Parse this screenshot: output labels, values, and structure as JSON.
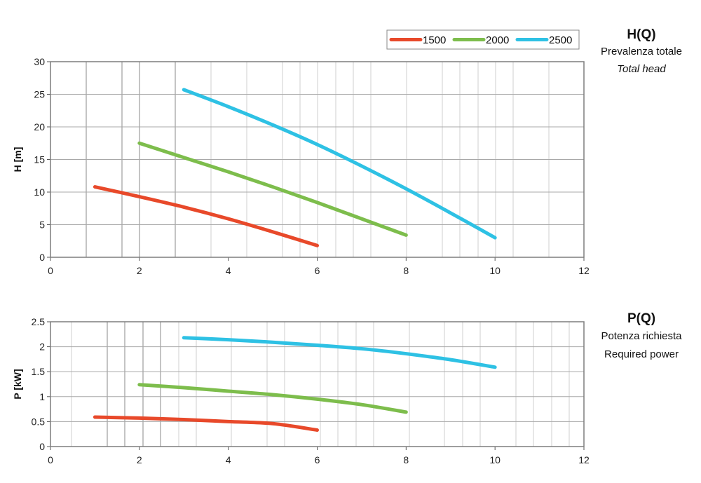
{
  "chart_data": [
    {
      "type": "line",
      "ylabel": "H [m]",
      "xlim": [
        0,
        12
      ],
      "ylim": [
        0,
        30
      ],
      "xticks": [
        "0",
        "2",
        "4",
        "6",
        "8",
        "10",
        "12"
      ],
      "yticks": [
        "0",
        "5",
        "10",
        "15",
        "20",
        "25",
        "30"
      ],
      "grid": true,
      "legend": "top-right",
      "side_title": "H(Q)",
      "side_subtitle": "Prevalenza totale",
      "side_subtitle_en": "Total head",
      "series": [
        {
          "name": "1500",
          "color": "#e8492a",
          "x": [
            1,
            2,
            3,
            4,
            5,
            6
          ],
          "y": [
            10.8,
            9.3,
            7.7,
            5.9,
            3.9,
            1.8
          ]
        },
        {
          "name": "2000",
          "color": "#7dbd4c",
          "x": [
            2,
            3,
            4,
            5,
            6,
            7,
            8
          ],
          "y": [
            17.5,
            15.3,
            13.1,
            10.8,
            8.4,
            5.9,
            3.4
          ]
        },
        {
          "name": "2500",
          "color": "#2ec1e4",
          "x": [
            3,
            4,
            5,
            6,
            7,
            8,
            9,
            10
          ],
          "y": [
            25.7,
            23.1,
            20.3,
            17.3,
            14.0,
            10.5,
            6.8,
            3.0
          ]
        }
      ]
    },
    {
      "type": "line",
      "ylabel": "P [kW]",
      "xlim": [
        0,
        12
      ],
      "ylim": [
        0,
        2.5
      ],
      "xticks": [
        "0",
        "2",
        "4",
        "6",
        "8",
        "10",
        "12"
      ],
      "yticks": [
        "0",
        "0.5",
        "1",
        "1.5",
        "2",
        "2.5"
      ],
      "grid": true,
      "side_title": "P(Q)",
      "side_subtitle": "Potenza richiesta",
      "side_subtitle_en": "Required power",
      "series": [
        {
          "name": "1500",
          "color": "#e8492a",
          "x": [
            1,
            2,
            3,
            4,
            5,
            6
          ],
          "y": [
            0.59,
            0.57,
            0.54,
            0.5,
            0.46,
            0.33
          ]
        },
        {
          "name": "2000",
          "color": "#7dbd4c",
          "x": [
            2,
            3,
            4,
            5,
            6,
            7,
            8
          ],
          "y": [
            1.24,
            1.18,
            1.11,
            1.04,
            0.95,
            0.84,
            0.69
          ]
        },
        {
          "name": "2500",
          "color": "#2ec1e4",
          "x": [
            3,
            4,
            5,
            6,
            7,
            8,
            9,
            10
          ],
          "y": [
            2.18,
            2.14,
            2.09,
            2.03,
            1.96,
            1.86,
            1.74,
            1.59
          ]
        }
      ]
    }
  ]
}
